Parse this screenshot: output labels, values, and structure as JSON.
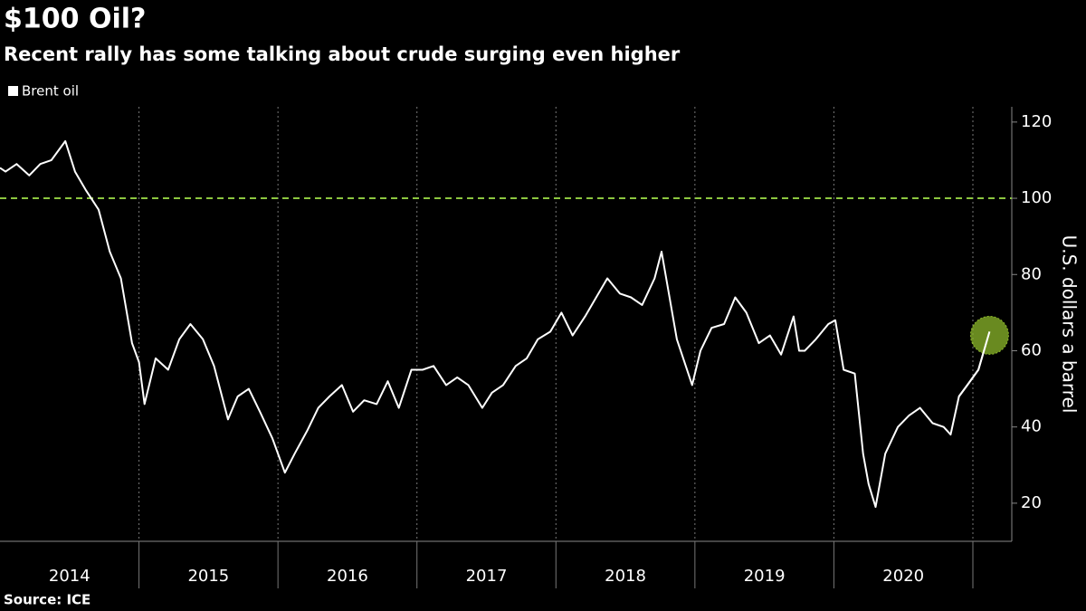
{
  "chart_data": {
    "type": "line",
    "title": "$100 Oil?",
    "subtitle": "Recent rally has some talking about crude surging even higher",
    "y_axis_label": "U.S. dollars a barrel",
    "source": "Source: ICE",
    "reference_line": 100,
    "reference_color": "#8cc63f",
    "highlight_color": "#8cb82b",
    "xlim": [
      2014,
      2021.28
    ],
    "xgrid": [
      2015,
      2016,
      2017,
      2018,
      2019,
      2020,
      2021
    ],
    "xticks": [
      {
        "value": 2014.5,
        "label": "2014"
      },
      {
        "value": 2015.5,
        "label": "2015"
      },
      {
        "value": 2016.5,
        "label": "2016"
      },
      {
        "value": 2017.5,
        "label": "2017"
      },
      {
        "value": 2018.5,
        "label": "2018"
      },
      {
        "value": 2019.5,
        "label": "2019"
      },
      {
        "value": 2020.5,
        "label": "2020"
      }
    ],
    "ylim": [
      10,
      124
    ],
    "yticks": [
      20,
      40,
      60,
      80,
      100,
      120
    ],
    "x": [
      2014.0,
      2014.04,
      2014.12,
      2014.21,
      2014.29,
      2014.37,
      2014.47,
      2014.54,
      2014.62,
      2014.71,
      2014.79,
      2014.87,
      2014.95,
      2015.0,
      2015.04,
      2015.12,
      2015.21,
      2015.29,
      2015.37,
      2015.46,
      2015.54,
      2015.64,
      2015.71,
      2015.79,
      2015.87,
      2015.96,
      2016.05,
      2016.12,
      2016.21,
      2016.29,
      2016.37,
      2016.46,
      2016.54,
      2016.62,
      2016.71,
      2016.79,
      2016.87,
      2016.96,
      2017.04,
      2017.12,
      2017.21,
      2017.29,
      2017.37,
      2017.47,
      2017.54,
      2017.62,
      2017.71,
      2017.79,
      2017.87,
      2017.96,
      2018.04,
      2018.12,
      2018.21,
      2018.29,
      2018.37,
      2018.46,
      2018.54,
      2018.62,
      2018.71,
      2018.76,
      2018.87,
      2018.98,
      2019.04,
      2019.12,
      2019.21,
      2019.29,
      2019.37,
      2019.46,
      2019.54,
      2019.62,
      2019.71,
      2019.75,
      2019.79,
      2019.87,
      2019.96,
      2020.01,
      2020.07,
      2020.15,
      2020.21,
      2020.25,
      2020.3,
      2020.37,
      2020.46,
      2020.54,
      2020.62,
      2020.71,
      2020.79,
      2020.84,
      2020.9,
      2020.96,
      2021.04,
      2021.12
    ],
    "series": [
      {
        "name": "Brent oil",
        "color": "#ffffff",
        "values": [
          108,
          107,
          109,
          106,
          109,
          110,
          115,
          107,
          102,
          97,
          86,
          79,
          62,
          57,
          46,
          58,
          55,
          63,
          67,
          63,
          56,
          42,
          48,
          50,
          44,
          37,
          28,
          33,
          39,
          45,
          48,
          51,
          44,
          47,
          46,
          52,
          45,
          55,
          55,
          56,
          51,
          53,
          51,
          45,
          49,
          51,
          56,
          58,
          63,
          65,
          70,
          64,
          69,
          74,
          79,
          75,
          74,
          72,
          79,
          86,
          63,
          51,
          60,
          66,
          67,
          74,
          70,
          62,
          64,
          59,
          69,
          60,
          60,
          63,
          67,
          68,
          55,
          54,
          33,
          25,
          19,
          33,
          40,
          43,
          45,
          41,
          40,
          38,
          48,
          51,
          55,
          65
        ]
      }
    ]
  }
}
